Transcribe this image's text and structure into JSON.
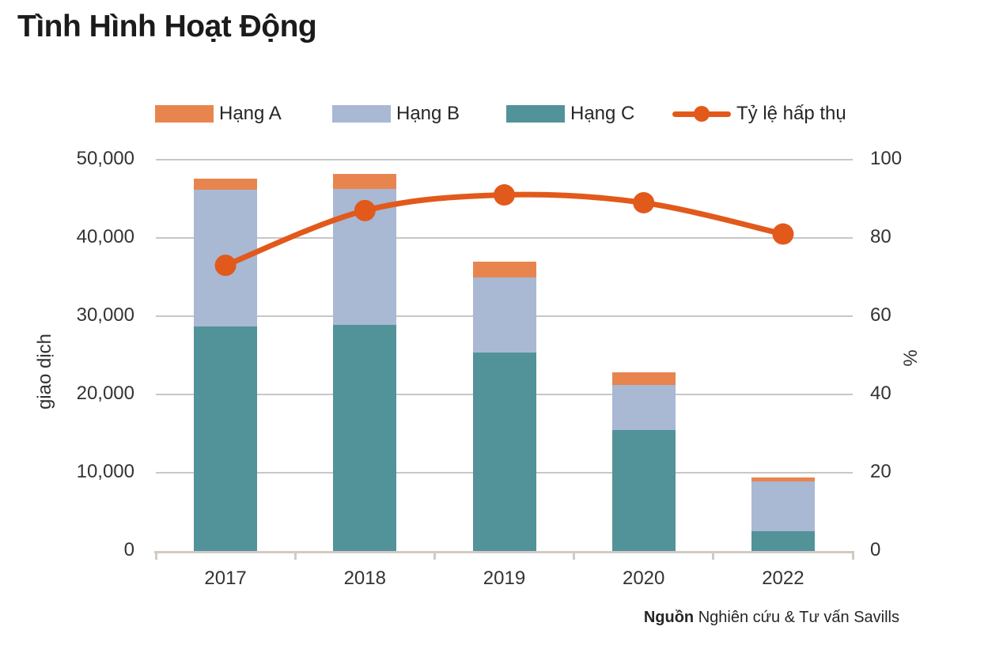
{
  "page": {
    "title": "Tình Hình Hoạt Động"
  },
  "legend": {
    "items": [
      {
        "label": "Hạng A",
        "symbol": "swatch",
        "color": "#e8854f"
      },
      {
        "label": "Hạng B",
        "symbol": "swatch",
        "color": "#a9b8d3"
      },
      {
        "label": "Hạng C",
        "symbol": "swatch",
        "color": "#52939a"
      },
      {
        "label": "Tỷ lệ hấp thụ",
        "symbol": "line",
        "color": "#e2591c"
      }
    ]
  },
  "source": {
    "label": "Nguồn",
    "text": " Nghiên cứu & Tư vấn Savills"
  },
  "colors": {
    "grid": "#c7c7c7",
    "axis": "#d2cac4",
    "tick_text": "#333333",
    "title_text": "#1b1b1b"
  },
  "chart_data": {
    "type": "bar",
    "subtype": "stacked-column-with-line",
    "title": "Tình Hình Hoạt Động",
    "categories": [
      "2017",
      "2018",
      "2019",
      "2020",
      "2022"
    ],
    "series": [
      {
        "name": "Hạng A",
        "type": "bar",
        "color": "#e8854f",
        "values": [
          1400,
          1900,
          2100,
          1600,
          500
        ]
      },
      {
        "name": "Hạng B",
        "type": "bar",
        "color": "#a9b8d3",
        "values": [
          17500,
          17400,
          9500,
          5700,
          6400
        ]
      },
      {
        "name": "Hạng C",
        "type": "bar",
        "color": "#52939a",
        "values": [
          28700,
          28900,
          25400,
          15500,
          2500
        ]
      },
      {
        "name": "Tỷ lệ hấp thụ",
        "type": "line",
        "axis": "right",
        "color": "#e2591c",
        "values": [
          73,
          87,
          91,
          89,
          81
        ]
      }
    ],
    "stack_order": [
      "Hạng C",
      "Hạng B",
      "Hạng A"
    ],
    "left_axis": {
      "label": "giao dịch",
      "min": 0,
      "max": 50000,
      "tick_labels": [
        "0",
        "10,000",
        "20,000",
        "30,000",
        "40,000",
        "50,000"
      ]
    },
    "right_axis": {
      "label": "%",
      "min": 0,
      "max": 100,
      "tick_labels": [
        "0",
        "20",
        "40",
        "60",
        "80",
        "100"
      ]
    },
    "grid": "horizontal",
    "legend_position": "top"
  }
}
